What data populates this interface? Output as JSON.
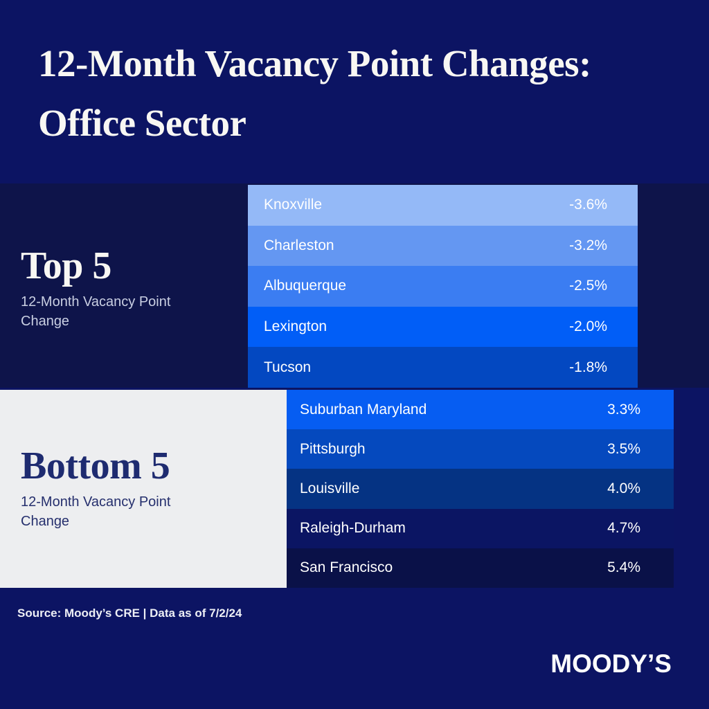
{
  "title": {
    "line1": "12-Month Vacancy Point Changes:",
    "line2": "Office Sector"
  },
  "top5": {
    "heading": "Top 5",
    "subtitle_line1": "12-Month Vacancy Point",
    "subtitle_line2": "Change",
    "rows": [
      {
        "city": "Knoxville",
        "value": "-3.6%",
        "color": "#94B9F7"
      },
      {
        "city": "Charleston",
        "value": "-3.2%",
        "color": "#6497F2"
      },
      {
        "city": "Albuquerque",
        "value": "-2.5%",
        "color": "#3B7DF2"
      },
      {
        "city": "Lexington",
        "value": "-2.0%",
        "color": "#015EF7"
      },
      {
        "city": "Tucson",
        "value": "-1.8%",
        "color": "#0348C1"
      }
    ]
  },
  "bottom5": {
    "heading": "Bottom 5",
    "subtitle_line1": "12-Month Vacancy Point",
    "subtitle_line2": "Change",
    "rows": [
      {
        "city": "Suburban Maryland",
        "value": "3.3%",
        "color": "#065DF2"
      },
      {
        "city": "Pittsburgh",
        "value": "3.5%",
        "color": "#0549BE"
      },
      {
        "city": "Louisville",
        "value": "4.0%",
        "color": "#053383"
      },
      {
        "city": "Raleigh-Durham",
        "value": "4.7%",
        "color": "#0B1563"
      },
      {
        "city": "San Francisco",
        "value": "5.4%",
        "color": "#0A1148"
      }
    ]
  },
  "footer": {
    "source": "Source: Moody’s CRE | Data as of 7/2/24",
    "logo": "MOODY’S"
  },
  "colors": {
    "background": "#0C1463",
    "top_panel": "#0E144A",
    "bottom_panel": "#EDEEF0",
    "title_text": "#F8F7F3",
    "bottom_heading_text": "#1E2B70",
    "row_text": "#FFFFFF"
  },
  "chart_data": {
    "type": "bar",
    "title": "12-Month Vacancy Point Changes: Office Sector",
    "unit": "percentage points",
    "legend_position": "left",
    "series": [
      {
        "name": "Top 5 — 12-Month Vacancy Point Change",
        "categories": [
          "Knoxville",
          "Charleston",
          "Albuquerque",
          "Lexington",
          "Tucson"
        ],
        "values": [
          -3.6,
          -3.2,
          -2.5,
          -2.0,
          -1.8
        ]
      },
      {
        "name": "Bottom 5 — 12-Month Vacancy Point Change",
        "categories": [
          "Suburban Maryland",
          "Pittsburgh",
          "Louisville",
          "Raleigh-Durham",
          "San Francisco"
        ],
        "values": [
          3.3,
          3.5,
          4.0,
          4.7,
          5.4
        ]
      }
    ],
    "source": "Source: Moody’s CRE | Data as of 7/2/24"
  }
}
